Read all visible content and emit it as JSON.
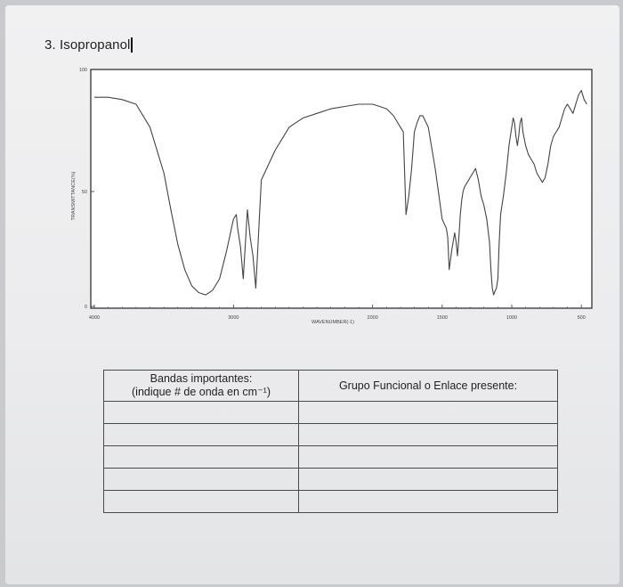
{
  "heading": "3. Isopropanol",
  "chart_data": {
    "type": "line",
    "title": "",
    "ylabel": "TRANSMITTANCE(%)",
    "xlabel": "WAVENUMBER(-1)",
    "x_ticks": [
      "4000",
      "3000",
      "2000",
      "1500",
      "1000",
      "500"
    ],
    "y_ticks": [
      "0",
      "50",
      "100"
    ],
    "xlim": [
      4000,
      450
    ],
    "ylim": [
      0,
      100
    ],
    "series": [
      {
        "x": [
          4000,
          3900,
          3800,
          3700,
          3600,
          3500,
          3450,
          3400,
          3350,
          3300,
          3250,
          3200,
          3150,
          3100,
          3050,
          3000,
          2980,
          2970,
          2950,
          2930,
          2900,
          2880,
          2860,
          2840,
          2800,
          2700,
          2600,
          2500,
          2400,
          2300,
          2200,
          2100,
          2000,
          1950,
          1900,
          1850,
          1820,
          1800,
          1780,
          1760,
          1740,
          1720,
          1700,
          1680,
          1660,
          1640,
          1600,
          1550,
          1500,
          1470,
          1460,
          1450,
          1430,
          1410,
          1400,
          1390,
          1380,
          1370,
          1360,
          1350,
          1340,
          1320,
          1300,
          1280,
          1260,
          1240,
          1220,
          1200,
          1180,
          1160,
          1150,
          1140,
          1130,
          1125,
          1110,
          1100,
          1090,
          1080,
          1060,
          1040,
          1020,
          1000,
          990,
          980,
          970,
          960,
          950,
          940,
          930,
          920,
          900,
          880,
          860,
          840,
          820,
          800,
          780,
          760,
          740,
          720,
          700,
          680,
          660,
          640,
          620,
          600,
          580,
          560,
          540,
          520,
          500,
          480,
          460
        ],
        "y": [
          91,
          91,
          90,
          88,
          78,
          58,
          42,
          27,
          16,
          9,
          6,
          5,
          7,
          12,
          24,
          38,
          40,
          34,
          26,
          12,
          42,
          30,
          22,
          8,
          55,
          68,
          78,
          82,
          84,
          86,
          87,
          88,
          88,
          87,
          86,
          83,
          80,
          78,
          76,
          40,
          48,
          60,
          76,
          80,
          83,
          83,
          78,
          60,
          38,
          34,
          30,
          16,
          25,
          32,
          28,
          22,
          30,
          40,
          46,
          50,
          52,
          54,
          56,
          58,
          60,
          55,
          48,
          44,
          38,
          28,
          16,
          8,
          5,
          6,
          8,
          12,
          28,
          40,
          48,
          58,
          70,
          78,
          82,
          80,
          74,
          70,
          74,
          80,
          82,
          76,
          70,
          66,
          64,
          62,
          58,
          56,
          54,
          56,
          62,
          70,
          74,
          76,
          78,
          82,
          86,
          88,
          86,
          84,
          88,
          92,
          94,
          90,
          88
        ]
      }
    ],
    "grid": false
  },
  "table": {
    "header_col1_line1": "Bandas importantes:",
    "header_col1_line2": "(indique # de onda en cm⁻¹)",
    "header_col2": "Grupo Funcional o Enlace presente:",
    "empty_rows": 5
  }
}
